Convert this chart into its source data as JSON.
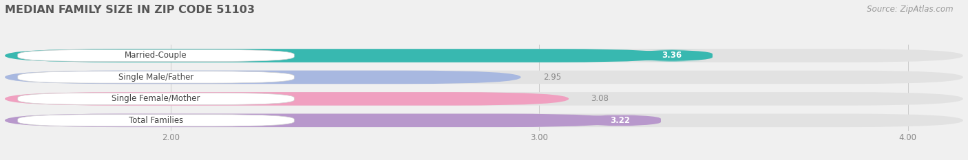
{
  "title": "MEDIAN FAMILY SIZE IN ZIP CODE 51103",
  "source": "Source: ZipAtlas.com",
  "categories": [
    "Married-Couple",
    "Single Male/Father",
    "Single Female/Mother",
    "Total Families"
  ],
  "values": [
    3.36,
    2.95,
    3.08,
    3.22
  ],
  "bar_colors": [
    "#38b8b0",
    "#a8b8e0",
    "#f0a0c0",
    "#b898cc"
  ],
  "value_bg_colors": [
    "#38b8b0",
    "#38b8b0",
    "#b898cc",
    "#b898cc"
  ],
  "xlim_min": 1.55,
  "xlim_max": 4.15,
  "xticks": [
    2.0,
    3.0,
    4.0
  ],
  "xtick_labels": [
    "2.00",
    "3.00",
    "4.00"
  ],
  "bar_height": 0.62,
  "background_color": "#f0f0f0",
  "title_color": "#555555",
  "title_fontsize": 11.5,
  "label_fontsize": 8.5,
  "value_fontsize": 8.5,
  "source_fontsize": 8.5,
  "track_color": "#e2e2e2",
  "value_pill_colors": [
    "#38b8b0",
    null,
    null,
    "#b898cc"
  ],
  "value_text_colors": [
    "white",
    "#888888",
    "#888888",
    "white"
  ]
}
